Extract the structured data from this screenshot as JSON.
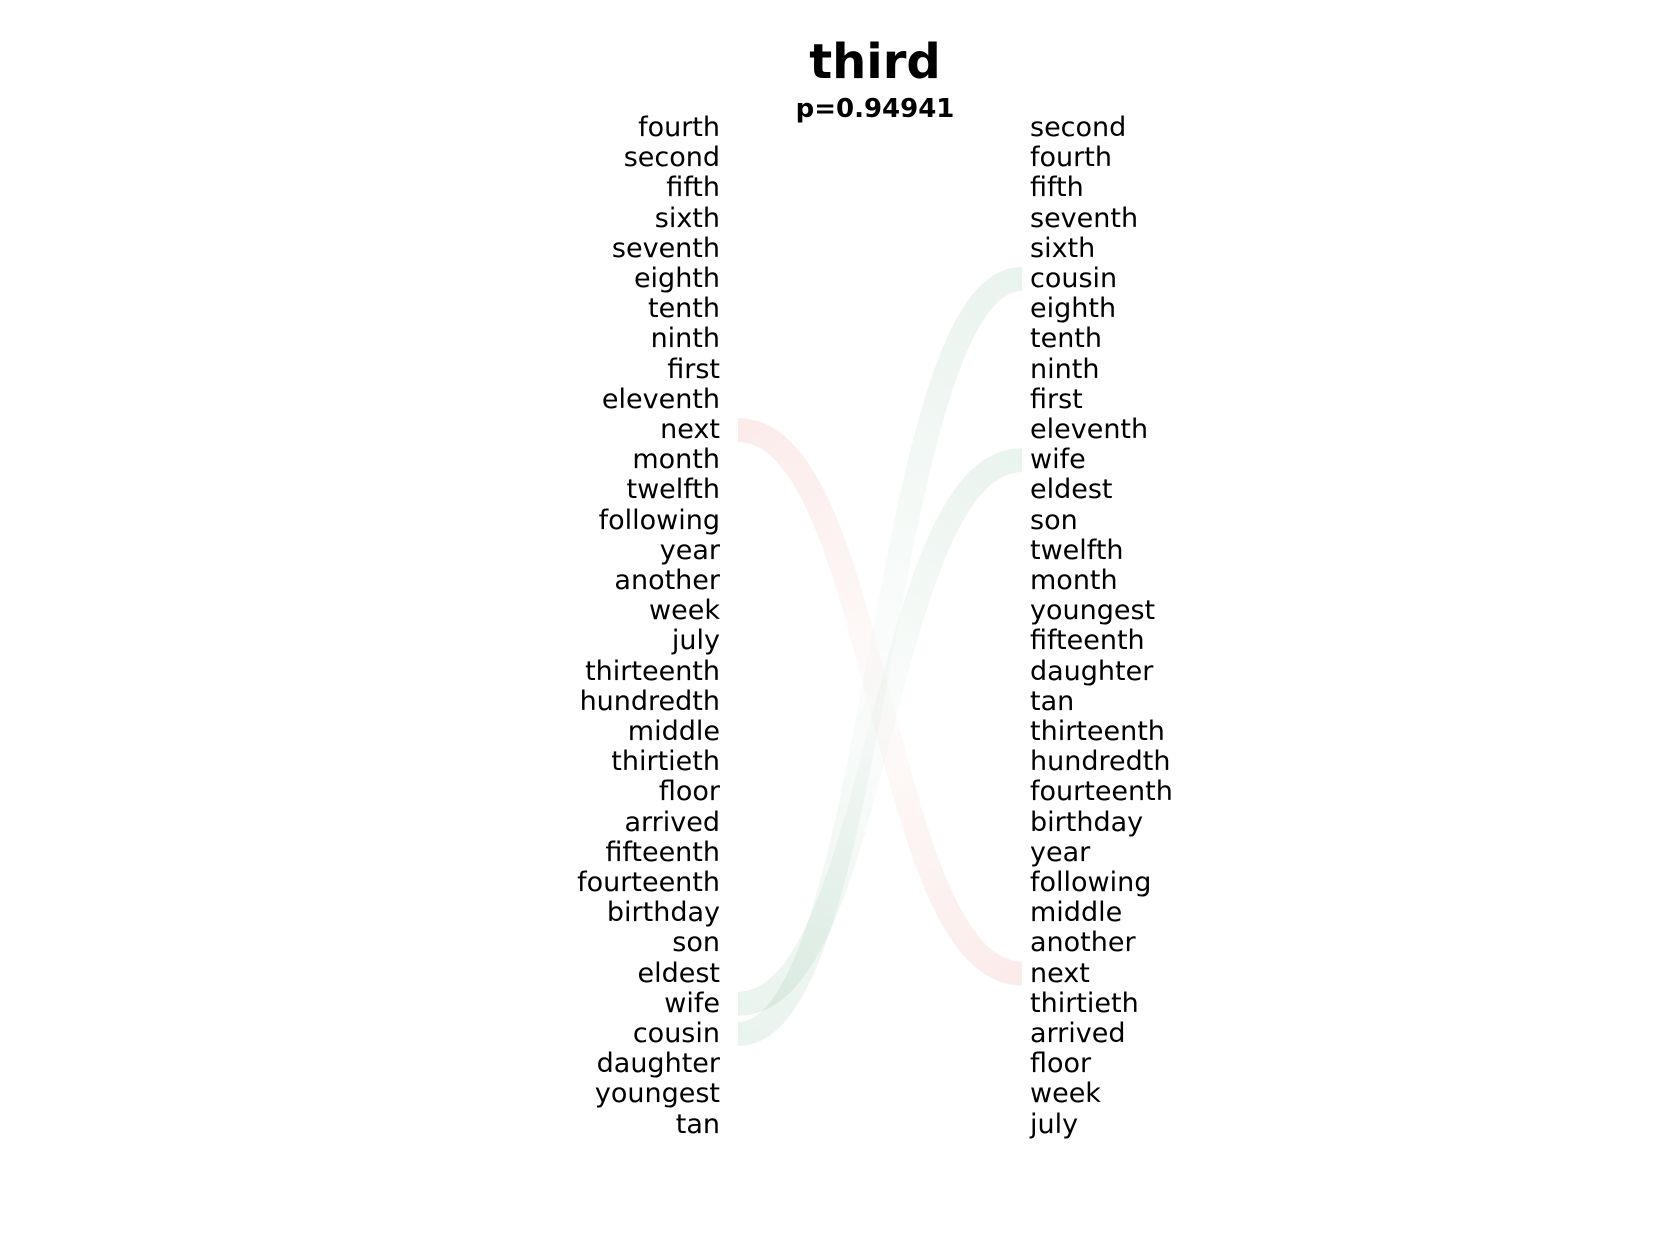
{
  "title": "third",
  "subtitle": "p=0.94941",
  "left_words": [
    "fourth",
    "second",
    "fifth",
    "sixth",
    "seventh",
    "eighth",
    "tenth",
    "ninth",
    "first",
    "eleventh",
    "next",
    "month",
    "twelfth",
    "following",
    "year",
    "another",
    "week",
    "july",
    "thirteenth",
    "hundredth",
    "middle",
    "thirtieth",
    "floor",
    "arrived",
    "fifteenth",
    "fourteenth",
    "birthday",
    "son",
    "eldest",
    "wife",
    "cousin",
    "daughter",
    "youngest",
    "tan"
  ],
  "right_words": [
    "second",
    "fourth",
    "fifth",
    "seventh",
    "sixth",
    "cousin",
    "eighth",
    "tenth",
    "ninth",
    "first",
    "eleventh",
    "wife",
    "eldest",
    "son",
    "twelfth",
    "month",
    "youngest",
    "fifteenth",
    "daughter",
    "tan",
    "thirteenth",
    "hundredth",
    "fourteenth",
    "birthday",
    "year",
    "following",
    "middle",
    "another",
    "next",
    "thirtieth",
    "arrived",
    "floor",
    "week",
    "july"
  ],
  "links": [
    {
      "left_index": 10,
      "right_index": 28,
      "color": "#d44030"
    },
    {
      "left_index": 29,
      "right_index": 11,
      "color": "#2e8b57"
    },
    {
      "left_index": 30,
      "right_index": 5,
      "color": "#2e8b57"
    }
  ]
}
